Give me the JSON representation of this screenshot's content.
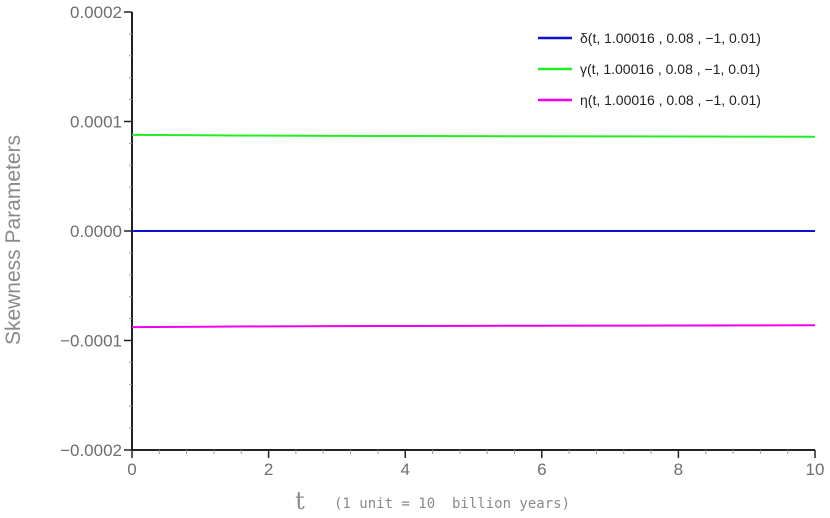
{
  "chart_data": {
    "type": "line",
    "title": "",
    "ylabel": "Skewness Parameters",
    "xlabel": "t",
    "xlabel_note": "(1 unit = 10  billion years)",
    "xlim": [
      0,
      10
    ],
    "ylim": [
      -0.0002,
      0.0002
    ],
    "x_ticks": [
      0,
      2,
      4,
      6,
      8,
      10
    ],
    "x_tick_labels": [
      "0",
      "2",
      "4",
      "6",
      "8",
      "10"
    ],
    "y_ticks": [
      -0.0002,
      -0.0001,
      0,
      0.0001,
      0.0002
    ],
    "y_tick_labels": [
      "−0.0002",
      "−0.0001",
      "0.0000",
      "0.0001",
      "0.0002"
    ],
    "grid": false,
    "legend_position": "top-right",
    "series": [
      {
        "name": "δ(t, 1.00016 , 0.08 , −1, 0.01)",
        "color": "#1010d0",
        "x": [
          0,
          1,
          2,
          3,
          4,
          5,
          6,
          7,
          8,
          9,
          10
        ],
        "y": [
          0,
          0,
          0,
          0,
          0,
          0,
          0,
          0,
          0,
          0,
          0
        ]
      },
      {
        "name": "γ(t, 1.00016 , 0.08 , −1, 0.01)",
        "color": "#22ee22",
        "x": [
          0,
          1,
          2,
          3,
          4,
          5,
          6,
          7,
          8,
          9,
          10
        ],
        "y": [
          8.78e-05,
          8.74e-05,
          8.71e-05,
          8.69e-05,
          8.67e-05,
          8.66e-05,
          8.65e-05,
          8.64e-05,
          8.63e-05,
          8.62e-05,
          8.61e-05
        ]
      },
      {
        "name": "η(t, 1.00016 , 0.08 , −1, 0.01)",
        "color": "#ee00ee",
        "x": [
          0,
          1,
          2,
          3,
          4,
          5,
          6,
          7,
          8,
          9,
          10
        ],
        "y": [
          -8.78e-05,
          -8.74e-05,
          -8.71e-05,
          -8.69e-05,
          -8.67e-05,
          -8.66e-05,
          -8.65e-05,
          -8.64e-05,
          -8.63e-05,
          -8.62e-05,
          -8.61e-05
        ]
      }
    ]
  }
}
